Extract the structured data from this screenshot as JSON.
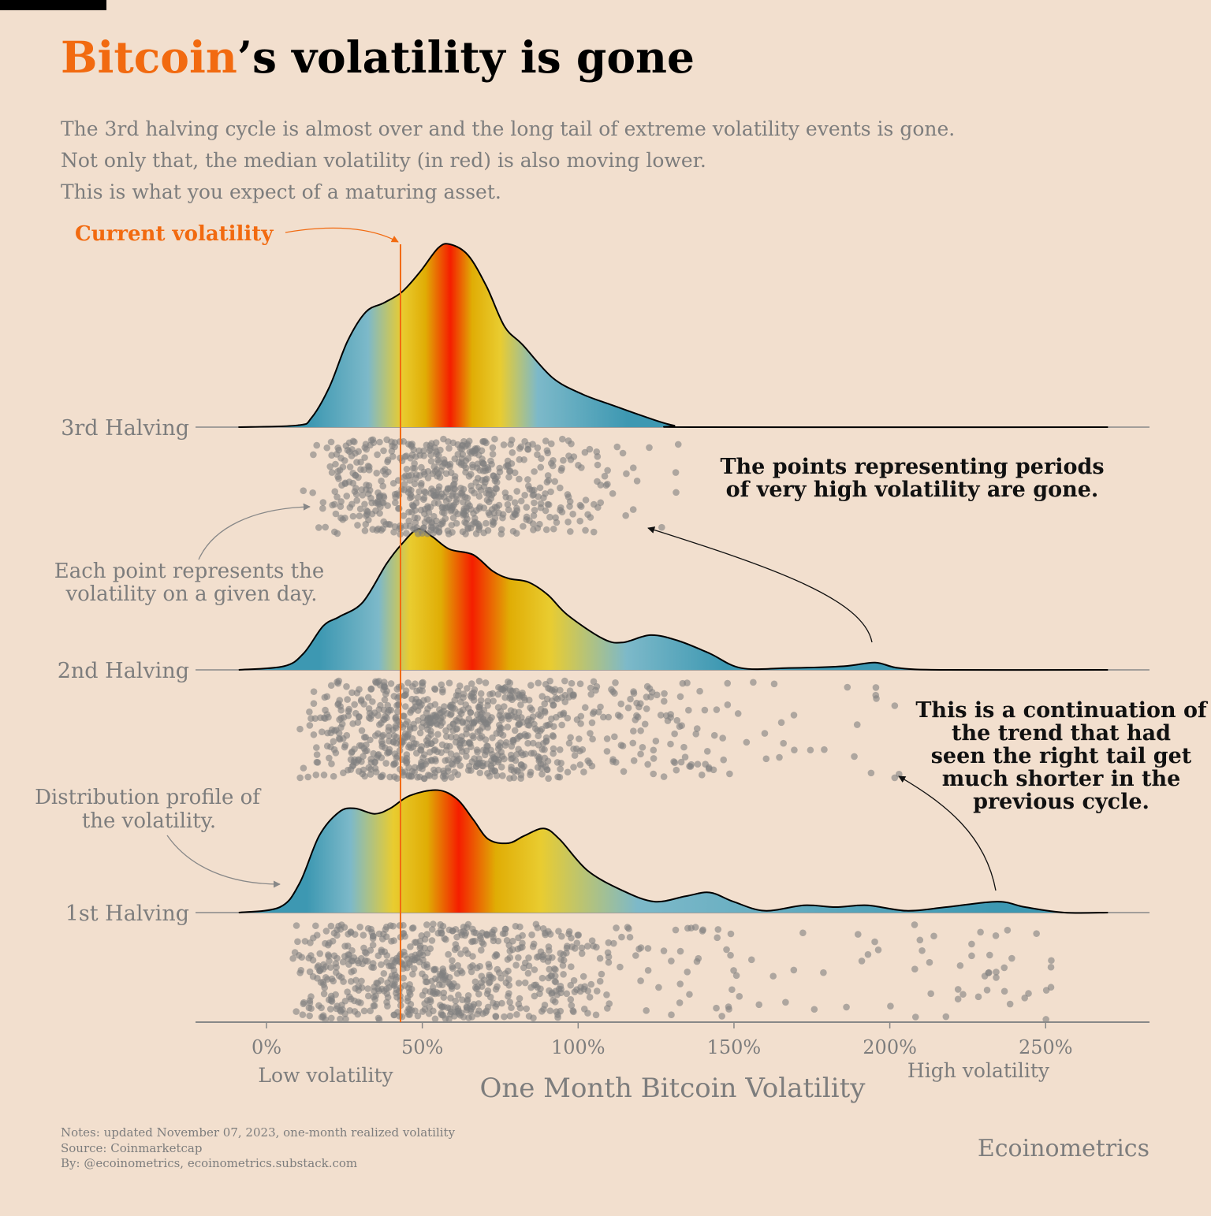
{
  "title": {
    "highlight": "Bitcoin",
    "rest": "’s volatility is gone"
  },
  "subtitle": [
    "The 3rd halving cycle is almost over and the long tail of extreme volatility events is gone.",
    "Not only that, the median volatility (in red) is also moving lower.",
    "This is what you expect of a maturing asset."
  ],
  "colors": {
    "accent": "#f26a10",
    "points": "#808080",
    "dark_blue": "#3d98b2",
    "light_blue": "#7db9c9",
    "yellow": "#e9cc30",
    "gold": "#e0ad05",
    "red": "#f51e00"
  },
  "annotations": {
    "current_volatility": "Current volatility",
    "points_gone": [
      "The points representing periods",
      "of very high volatility are gone."
    ],
    "continuation": [
      "This is a continuation of",
      "the trend that had",
      "seen the right tail get",
      "much shorter in the",
      "previous cycle."
    ],
    "each_point": [
      "Each point represents the",
      "volatility on a given day."
    ],
    "distribution": [
      "Distribution profile of",
      "the volatility."
    ]
  },
  "chart_data": {
    "type": "ridgeline",
    "xlabel": "One Month Bitcoin Volatility",
    "x_low_label": "Low volatility",
    "x_high_label": "High volatility",
    "xlim": [
      -23,
      283
    ],
    "xticks": [
      0,
      50,
      100,
      150,
      200,
      250
    ],
    "xtick_labels": [
      "0%",
      "50%",
      "100%",
      "150%",
      "200%",
      "250%"
    ],
    "current_volatility": 43,
    "density_units": "relative (max = 1)",
    "series": [
      {
        "name": "3rd Halving",
        "median": 59,
        "density": [
          [
            -9,
            0
          ],
          [
            10,
            0.01
          ],
          [
            14.4,
            0.05
          ],
          [
            20.2,
            0.22
          ],
          [
            26,
            0.47
          ],
          [
            31.9,
            0.63
          ],
          [
            37.7,
            0.68
          ],
          [
            43.5,
            0.74
          ],
          [
            49.3,
            0.85
          ],
          [
            55.1,
            0.98
          ],
          [
            58.9,
            1.0
          ],
          [
            64.7,
            0.94
          ],
          [
            70.6,
            0.77
          ],
          [
            76.4,
            0.55
          ],
          [
            82.2,
            0.45
          ],
          [
            91.8,
            0.27
          ],
          [
            101.4,
            0.18
          ],
          [
            111,
            0.12
          ],
          [
            120.9,
            0.06
          ],
          [
            130.5,
            0.01
          ],
          [
            140,
            0
          ],
          [
            270,
            0
          ]
        ],
        "color_stops": [
          [
            14,
            "dark_blue"
          ],
          [
            32.6,
            "light_blue"
          ],
          [
            43.5,
            "yellow"
          ],
          [
            51,
            "gold"
          ],
          [
            59,
            "red"
          ],
          [
            66,
            "gold"
          ],
          [
            75,
            "yellow"
          ],
          [
            87,
            "light_blue"
          ],
          [
            116,
            "dark_blue"
          ]
        ]
      },
      {
        "name": "2nd Halving",
        "median": 66,
        "density": [
          [
            -8.9,
            0
          ],
          [
            5.6,
            0.02
          ],
          [
            11.9,
            0.09
          ],
          [
            18.2,
            0.24
          ],
          [
            23.3,
            0.29
          ],
          [
            30.9,
            0.37
          ],
          [
            38.5,
            0.58
          ],
          [
            43.5,
            0.69
          ],
          [
            48.6,
            0.77
          ],
          [
            53.1,
            0.73
          ],
          [
            58.7,
            0.66
          ],
          [
            66.3,
            0.63
          ],
          [
            72.6,
            0.54
          ],
          [
            77.7,
            0.5
          ],
          [
            84,
            0.48
          ],
          [
            90.3,
            0.41
          ],
          [
            96.6,
            0.3
          ],
          [
            108,
            0.17
          ],
          [
            114.3,
            0.15
          ],
          [
            123.2,
            0.19
          ],
          [
            132,
            0.16
          ],
          [
            142.2,
            0.09
          ],
          [
            152.3,
            0.01
          ],
          [
            167.5,
            0.01
          ],
          [
            185.2,
            0.02
          ],
          [
            195.3,
            0.04
          ],
          [
            202.9,
            0.01
          ],
          [
            218.1,
            0
          ],
          [
            270,
            0
          ]
        ],
        "color_stops": [
          [
            17,
            "dark_blue"
          ],
          [
            36,
            "light_blue"
          ],
          [
            46,
            "yellow"
          ],
          [
            56,
            "gold"
          ],
          [
            66,
            "red"
          ],
          [
            78,
            "gold"
          ],
          [
            91,
            "yellow"
          ],
          [
            115.6,
            "light_blue"
          ],
          [
            147,
            "dark_blue"
          ]
        ]
      },
      {
        "name": "1st Halving",
        "median": 62,
        "density": [
          [
            -8.9,
            0
          ],
          [
            4.3,
            0.03
          ],
          [
            10.6,
            0.16
          ],
          [
            16.9,
            0.42
          ],
          [
            23.3,
            0.55
          ],
          [
            28.3,
            0.57
          ],
          [
            34.7,
            0.54
          ],
          [
            39.7,
            0.57
          ],
          [
            46,
            0.64
          ],
          [
            54.9,
            0.67
          ],
          [
            61.2,
            0.62
          ],
          [
            66.3,
            0.51
          ],
          [
            71.3,
            0.4
          ],
          [
            77.7,
            0.38
          ],
          [
            82.7,
            0.42
          ],
          [
            89,
            0.46
          ],
          [
            94.1,
            0.4
          ],
          [
            103,
            0.23
          ],
          [
            114.3,
            0.12
          ],
          [
            124.5,
            0.06
          ],
          [
            134.6,
            0.09
          ],
          [
            142.2,
            0.11
          ],
          [
            149.8,
            0.06
          ],
          [
            159.9,
            0.01
          ],
          [
            172.5,
            0.04
          ],
          [
            182.6,
            0.03
          ],
          [
            192.8,
            0.04
          ],
          [
            205.4,
            0.01
          ],
          [
            218.1,
            0.03
          ],
          [
            234.5,
            0.06
          ],
          [
            243.4,
            0.03
          ],
          [
            256,
            0
          ],
          [
            270,
            0
          ]
        ],
        "color_stops": [
          [
            13,
            "dark_blue"
          ],
          [
            27,
            "light_blue"
          ],
          [
            40.7,
            "yellow"
          ],
          [
            51.6,
            "gold"
          ],
          [
            61.7,
            "red"
          ],
          [
            73.6,
            "gold"
          ],
          [
            88,
            "yellow"
          ],
          [
            119,
            "light_blue"
          ],
          [
            234,
            "dark_blue"
          ]
        ]
      }
    ]
  },
  "footer": {
    "notes": "Notes: updated November 07, 2023, one-month realized volatility",
    "source": "Source: Coinmarketcap",
    "by": "By: @ecoinometrics, ecoinometrics.substack.com",
    "brand": "Ecoinometrics"
  }
}
